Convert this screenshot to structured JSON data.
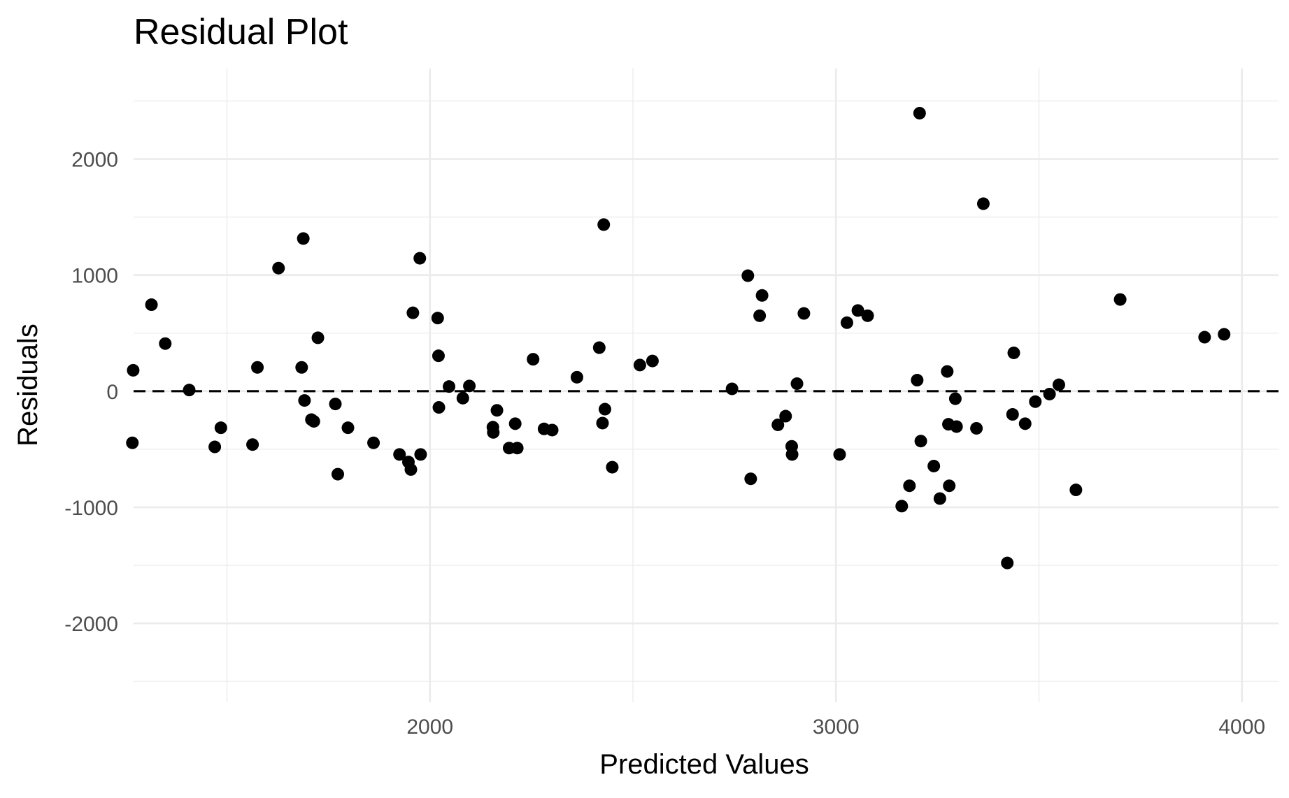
{
  "chart_data": {
    "type": "scatter",
    "title": "Residual Plot",
    "xlabel": "Predicted Values",
    "ylabel": "Residuals",
    "xlim": [
      1270,
      4090
    ],
    "ylim": [
      -2680,
      2780
    ],
    "x_ticks": [
      2000,
      3000,
      4000
    ],
    "x_minor_ticks": [
      1500,
      2500,
      3500
    ],
    "y_ticks": [
      -2000,
      -1000,
      0,
      1000,
      2000
    ],
    "y_minor_ticks": [
      -2500,
      -1500,
      -500,
      500,
      1500,
      2500
    ],
    "x_tick_labels": [
      "2000",
      "3000",
      "4000"
    ],
    "y_tick_labels": [
      "-2000",
      "-1000",
      "0",
      "1000",
      "2000"
    ],
    "grid": true,
    "reference_line": {
      "y": 0,
      "style": "dashed"
    },
    "point_color": "#000000",
    "points": [
      {
        "x": 1269,
        "y": 180
      },
      {
        "x": 1267,
        "y": -445
      },
      {
        "x": 1314,
        "y": 745
      },
      {
        "x": 1348,
        "y": 410
      },
      {
        "x": 1407,
        "y": 10
      },
      {
        "x": 1470,
        "y": -480
      },
      {
        "x": 1485,
        "y": -315
      },
      {
        "x": 1563,
        "y": -460
      },
      {
        "x": 1575,
        "y": 205
      },
      {
        "x": 1627,
        "y": 1060
      },
      {
        "x": 1684,
        "y": 205
      },
      {
        "x": 1688,
        "y": 1315
      },
      {
        "x": 1691,
        "y": -80
      },
      {
        "x": 1708,
        "y": -245
      },
      {
        "x": 1714,
        "y": -260
      },
      {
        "x": 1724,
        "y": 460
      },
      {
        "x": 1767,
        "y": -110
      },
      {
        "x": 1773,
        "y": -715
      },
      {
        "x": 1798,
        "y": -315
      },
      {
        "x": 1861,
        "y": -445
      },
      {
        "x": 1925,
        "y": -545
      },
      {
        "x": 1947,
        "y": -610
      },
      {
        "x": 1953,
        "y": -675
      },
      {
        "x": 1958,
        "y": 675
      },
      {
        "x": 1975,
        "y": 1145
      },
      {
        "x": 1977,
        "y": -545
      },
      {
        "x": 2019,
        "y": 630
      },
      {
        "x": 2021,
        "y": 305
      },
      {
        "x": 2022,
        "y": -140
      },
      {
        "x": 2047,
        "y": 40
      },
      {
        "x": 2081,
        "y": -60
      },
      {
        "x": 2097,
        "y": 45
      },
      {
        "x": 2155,
        "y": -310
      },
      {
        "x": 2156,
        "y": -355
      },
      {
        "x": 2165,
        "y": -165
      },
      {
        "x": 2195,
        "y": -490
      },
      {
        "x": 2210,
        "y": -280
      },
      {
        "x": 2215,
        "y": -490
      },
      {
        "x": 2254,
        "y": 275
      },
      {
        "x": 2281,
        "y": -325
      },
      {
        "x": 2301,
        "y": -335
      },
      {
        "x": 2362,
        "y": 120
      },
      {
        "x": 2417,
        "y": 375
      },
      {
        "x": 2425,
        "y": -275
      },
      {
        "x": 2428,
        "y": 1435
      },
      {
        "x": 2431,
        "y": -155
      },
      {
        "x": 2449,
        "y": -655
      },
      {
        "x": 2517,
        "y": 225
      },
      {
        "x": 2548,
        "y": 260
      },
      {
        "x": 2744,
        "y": 20
      },
      {
        "x": 2783,
        "y": 995
      },
      {
        "x": 2790,
        "y": -755
      },
      {
        "x": 2812,
        "y": 650
      },
      {
        "x": 2818,
        "y": 825
      },
      {
        "x": 2857,
        "y": -290
      },
      {
        "x": 2876,
        "y": -215
      },
      {
        "x": 2891,
        "y": -475
      },
      {
        "x": 2892,
        "y": -545
      },
      {
        "x": 2904,
        "y": 65
      },
      {
        "x": 2921,
        "y": 670
      },
      {
        "x": 3009,
        "y": -545
      },
      {
        "x": 3027,
        "y": 590
      },
      {
        "x": 3054,
        "y": 695
      },
      {
        "x": 3078,
        "y": 650
      },
      {
        "x": 3162,
        "y": -990
      },
      {
        "x": 3181,
        "y": -815
      },
      {
        "x": 3200,
        "y": 95
      },
      {
        "x": 3209,
        "y": -430
      },
      {
        "x": 3206,
        "y": 2395
      },
      {
        "x": 3241,
        "y": -645
      },
      {
        "x": 3256,
        "y": -925
      },
      {
        "x": 3274,
        "y": 170
      },
      {
        "x": 3277,
        "y": -285
      },
      {
        "x": 3279,
        "y": -815
      },
      {
        "x": 3294,
        "y": -65
      },
      {
        "x": 3297,
        "y": -305
      },
      {
        "x": 3346,
        "y": -320
      },
      {
        "x": 3363,
        "y": 1615
      },
      {
        "x": 3422,
        "y": -1480
      },
      {
        "x": 3435,
        "y": -200
      },
      {
        "x": 3438,
        "y": 330
      },
      {
        "x": 3466,
        "y": -280
      },
      {
        "x": 3491,
        "y": -90
      },
      {
        "x": 3526,
        "y": -25
      },
      {
        "x": 3549,
        "y": 55
      },
      {
        "x": 3591,
        "y": -850
      },
      {
        "x": 3700,
        "y": 790
      },
      {
        "x": 3908,
        "y": 465
      },
      {
        "x": 3956,
        "y": 490
      }
    ]
  }
}
